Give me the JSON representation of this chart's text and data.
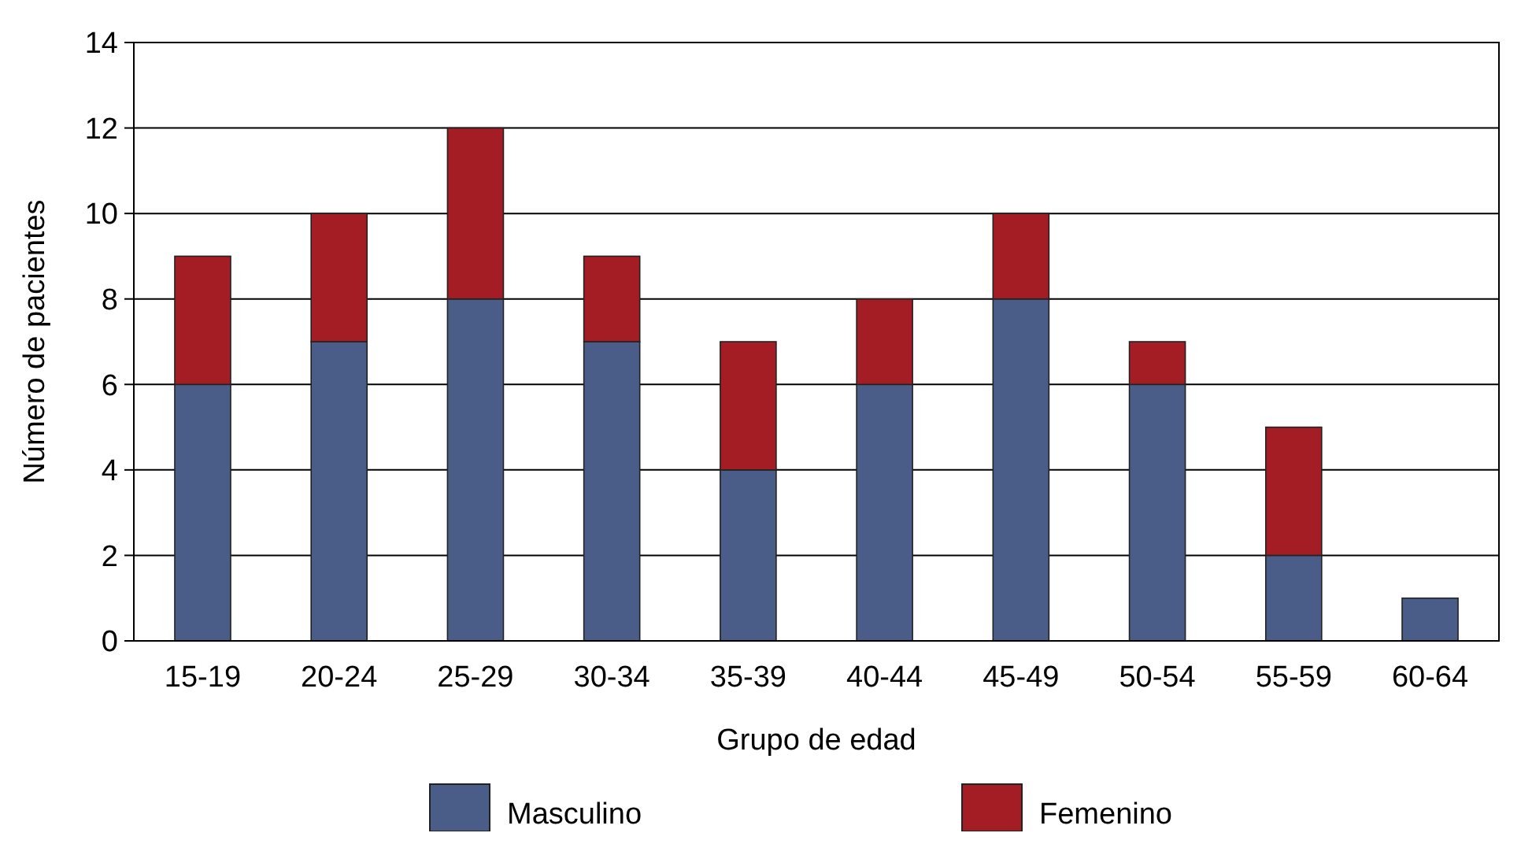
{
  "chart_data": {
    "type": "bar",
    "stacked": true,
    "xlabel": "Grupo de edad",
    "ylabel": "Número de pacientes",
    "categories": [
      "15-19",
      "20-24",
      "25-29",
      "30-34",
      "35-39",
      "40-44",
      "45-49",
      "50-54",
      "55-59",
      "60-64"
    ],
    "series": [
      {
        "name": "Masculino",
        "color": "#4a5d89",
        "values": [
          6,
          7,
          8,
          7,
          4,
          6,
          8,
          6,
          2,
          1
        ]
      },
      {
        "name": "Femenino",
        "color": "#a51d24",
        "values": [
          3,
          3,
          4,
          2,
          3,
          2,
          2,
          1,
          3,
          0
        ]
      }
    ],
    "ylim": [
      0,
      14
    ],
    "yticks": [
      0,
      2,
      4,
      6,
      8,
      10,
      12,
      14
    ],
    "grid": "y",
    "legend": "bottom"
  }
}
